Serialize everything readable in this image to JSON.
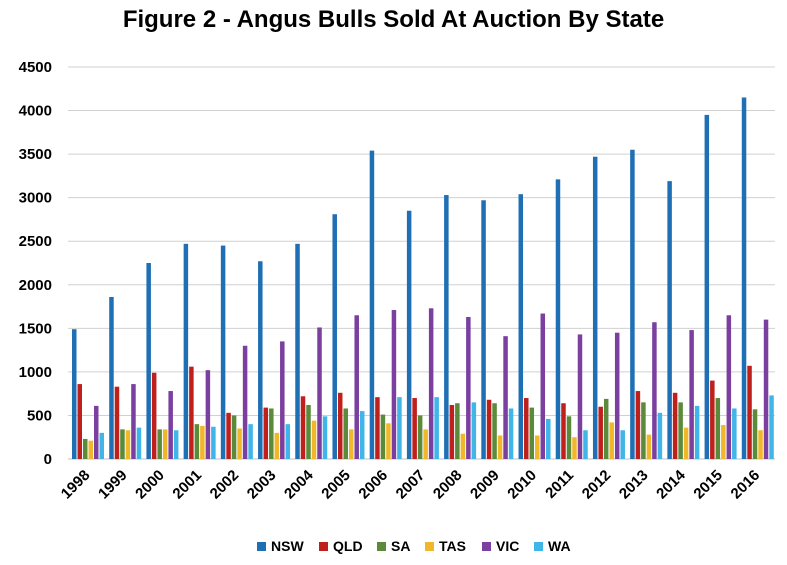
{
  "chart_data": {
    "type": "bar",
    "title": "Figure 2 - Angus Bulls Sold At Auction By State",
    "xlabel": "",
    "ylabel": "",
    "ylim": [
      0,
      4500
    ],
    "yticks": [
      0,
      500,
      1000,
      1500,
      2000,
      2500,
      3000,
      3500,
      4000,
      4500
    ],
    "grid": true,
    "legend_position": "bottom",
    "categories": [
      "1998",
      "1999",
      "2000",
      "2001",
      "2002",
      "2003",
      "2004",
      "2005",
      "2006",
      "2007",
      "2008",
      "2009",
      "2010",
      "2011",
      "2012",
      "2013",
      "2014",
      "2015",
      "2016"
    ],
    "series": [
      {
        "name": "NSW",
        "color": "#1f6fb4",
        "values": [
          1490,
          1860,
          2250,
          2470,
          2450,
          2270,
          2470,
          2810,
          3540,
          2850,
          3030,
          2970,
          3040,
          3210,
          3470,
          3550,
          3190,
          3950,
          4150
        ]
      },
      {
        "name": "QLD",
        "color": "#c0201c",
        "values": [
          860,
          830,
          990,
          1060,
          530,
          590,
          720,
          760,
          710,
          700,
          620,
          680,
          700,
          640,
          600,
          780,
          760,
          900,
          1070
        ]
      },
      {
        "name": "SA",
        "color": "#5a8a3a",
        "values": [
          230,
          340,
          340,
          400,
          500,
          580,
          620,
          580,
          510,
          500,
          640,
          640,
          590,
          490,
          690,
          650,
          650,
          700,
          570
        ]
      },
      {
        "name": "TAS",
        "color": "#f0b72a",
        "values": [
          210,
          330,
          340,
          380,
          350,
          300,
          440,
          340,
          410,
          340,
          290,
          270,
          270,
          250,
          420,
          280,
          360,
          390,
          330
        ]
      },
      {
        "name": "VIC",
        "color": "#7b3fa0",
        "values": [
          610,
          860,
          780,
          1020,
          1300,
          1350,
          1510,
          1650,
          1710,
          1730,
          1630,
          1410,
          1670,
          1430,
          1450,
          1570,
          1480,
          1650,
          1600
        ]
      },
      {
        "name": "WA",
        "color": "#3fb5e8",
        "values": [
          300,
          360,
          330,
          370,
          400,
          400,
          490,
          550,
          710,
          710,
          650,
          580,
          460,
          330,
          330,
          530,
          610,
          580,
          730
        ]
      }
    ]
  }
}
